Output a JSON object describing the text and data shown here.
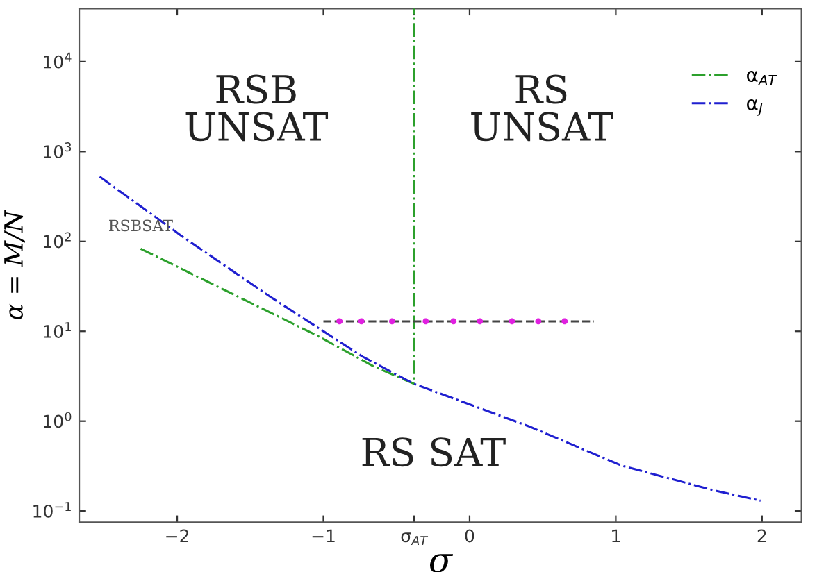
{
  "chart_data": {
    "type": "line",
    "xlabel": "σ",
    "ylabel": "α = M/N",
    "log": "y",
    "xlim": [
      -2.67,
      2.27
    ],
    "ylim": [
      0.075,
      39000
    ],
    "xticks": [
      {
        "value": -2,
        "label": "−2"
      },
      {
        "value": -1,
        "label": "−1"
      },
      {
        "value": -0.38,
        "label": "σ$_{AT}$"
      },
      0,
      1,
      2
    ],
    "yticks": [
      {
        "value": 0.1,
        "label": "10$^{−1}$"
      },
      {
        "value": 1,
        "label": "10$^{0}$"
      },
      {
        "value": 10,
        "label": "10$^{1}$"
      },
      {
        "value": 100,
        "label": "10$^{2}$"
      },
      {
        "value": 1000,
        "label": "10$^{3}$"
      },
      {
        "value": 10000,
        "label": "10$^{4}$"
      }
    ],
    "grid": false,
    "legend": "top right",
    "series": [
      {
        "name": "α$_{AT}$",
        "color": "#2ca02c",
        "line_style": "dashdot",
        "marker": "none",
        "x": [
          -2.25,
          -1.68,
          -1.04,
          -0.66,
          -0.38,
          -0.38
        ],
        "values": [
          83,
          29,
          8.9,
          4.1,
          2.6,
          39000
        ]
      },
      {
        "name": "α$_{J}$",
        "color": "#1f1fd0",
        "line_style": "dashdot",
        "marker": "none",
        "x": [
          -2.53,
          -1.96,
          -1.36,
          -0.73,
          -0.38,
          0.41,
          1.04,
          1.67,
          1.99
        ],
        "values": [
          525,
          112,
          24,
          5.2,
          2.6,
          0.87,
          0.32,
          0.17,
          0.13
        ]
      },
      {
        "color": "#444444",
        "line_style": "dashed",
        "marker": "none",
        "x": [
          -1.0,
          0.85
        ],
        "values": [
          12.9,
          12.9
        ]
      },
      {
        "type": "scatter",
        "color": "#e020e0",
        "marker": "circle",
        "x": [
          -0.89,
          -0.74,
          -0.53,
          -0.3,
          -0.11,
          0.07,
          0.29,
          0.47,
          0.65
        ],
        "values": [
          12.9,
          12.9,
          12.9,
          12.9,
          12.9,
          12.9,
          12.9,
          12.9,
          12.9
        ]
      }
    ],
    "annotations": [
      "RSB\nUNSAT",
      "RS\nUNSAT",
      "RS SAT",
      "RSBSAT"
    ]
  }
}
